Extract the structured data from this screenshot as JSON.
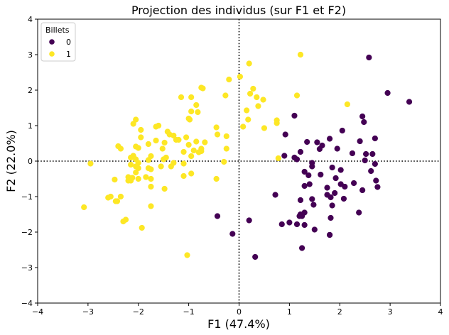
{
  "chart_data": {
    "type": "scatter",
    "title": "Projection des individus (sur F1 et F2)",
    "xlabel": "F1 (47.4%)",
    "ylabel": "F2 (22.0%)",
    "xlim": [
      -4,
      4
    ],
    "ylim": [
      -4,
      4
    ],
    "xticks": [
      -4,
      -3,
      -2,
      -1,
      0,
      1,
      2,
      3,
      4
    ],
    "yticks": [
      -4,
      -3,
      -2,
      -1,
      0,
      1,
      2,
      3,
      4
    ],
    "xtick_labels": [
      "−4",
      "−3",
      "−2",
      "−1",
      "0",
      "1",
      "2",
      "3",
      "4"
    ],
    "ytick_labels": [
      "−4",
      "−3",
      "−2",
      "−1",
      "0",
      "1",
      "2",
      "3",
      "4"
    ],
    "grid": false,
    "reference_lines": {
      "x": 0,
      "y": 0,
      "style": "dotted"
    },
    "legend": {
      "title": "Billets",
      "position": "top-left"
    },
    "series": [
      {
        "name": "0",
        "color": "#440154",
        "points": [
          [
            2.58,
            2.92
          ],
          [
            2.95,
            1.92
          ],
          [
            3.38,
            1.67
          ],
          [
            1.1,
            1.28
          ],
          [
            2.45,
            1.26
          ],
          [
            2.48,
            1.1
          ],
          [
            2.05,
            0.86
          ],
          [
            0.92,
            0.75
          ],
          [
            2.7,
            0.64
          ],
          [
            1.8,
            0.63
          ],
          [
            2.4,
            0.56
          ],
          [
            1.35,
            0.54
          ],
          [
            1.55,
            0.53
          ],
          [
            1.65,
            0.44
          ],
          [
            1.95,
            0.35
          ],
          [
            1.6,
            0.34
          ],
          [
            1.22,
            0.26
          ],
          [
            2.25,
            0.22
          ],
          [
            2.52,
            0.2
          ],
          [
            0.9,
            0.15
          ],
          [
            2.65,
            0.2
          ],
          [
            1.1,
            0.1
          ],
          [
            1.15,
            0.05
          ],
          [
            2.5,
            0.02
          ],
          [
            1.45,
            -0.05
          ],
          [
            2.7,
            -0.08
          ],
          [
            1.45,
            -0.15
          ],
          [
            1.85,
            -0.18
          ],
          [
            2.02,
            -0.25
          ],
          [
            1.3,
            -0.3
          ],
          [
            2.62,
            -0.28
          ],
          [
            1.62,
            -0.38
          ],
          [
            1.38,
            -0.4
          ],
          [
            1.92,
            -0.48
          ],
          [
            2.72,
            -0.55
          ],
          [
            2.28,
            -0.62
          ],
          [
            1.4,
            -0.65
          ],
          [
            2.02,
            -0.65
          ],
          [
            1.3,
            -0.7
          ],
          [
            2.1,
            -0.72
          ],
          [
            1.75,
            -0.75
          ],
          [
            2.75,
            -0.73
          ],
          [
            2.45,
            -0.82
          ],
          [
            1.9,
            -0.9
          ],
          [
            1.75,
            -0.95
          ],
          [
            0.72,
            -0.95
          ],
          [
            1.82,
            -1.02
          ],
          [
            2.08,
            -1.06
          ],
          [
            1.45,
            -1.07
          ],
          [
            1.22,
            -1.1
          ],
          [
            1.48,
            -1.23
          ],
          [
            1.85,
            -1.25
          ],
          [
            1.3,
            -1.45
          ],
          [
            1.22,
            -1.5
          ],
          [
            2.38,
            -1.45
          ],
          [
            1.25,
            -1.55
          ],
          [
            1.2,
            -1.55
          ],
          [
            -0.43,
            -1.55
          ],
          [
            1.82,
            -1.6
          ],
          [
            0.2,
            -1.67
          ],
          [
            1.0,
            -1.73
          ],
          [
            0.85,
            -1.78
          ],
          [
            1.15,
            -1.78
          ],
          [
            1.3,
            -1.8
          ],
          [
            1.5,
            -1.93
          ],
          [
            -0.13,
            -2.05
          ],
          [
            1.8,
            -2.08
          ],
          [
            1.8,
            -2.08
          ],
          [
            1.25,
            -2.45
          ],
          [
            0.32,
            -2.7
          ]
        ]
      },
      {
        "name": "1",
        "color": "#fde725",
        "points": [
          [
            1.22,
            3.0
          ],
          [
            0.2,
            2.75
          ],
          [
            0.02,
            2.38
          ],
          [
            -0.2,
            2.3
          ],
          [
            -0.75,
            2.07
          ],
          [
            -0.72,
            2.05
          ],
          [
            0.28,
            2.04
          ],
          [
            0.22,
            1.9
          ],
          [
            0.35,
            1.8
          ],
          [
            -0.95,
            1.8
          ],
          [
            -1.15,
            1.8
          ],
          [
            -0.27,
            1.85
          ],
          [
            1.15,
            1.85
          ],
          [
            0.48,
            1.73
          ],
          [
            0.38,
            1.55
          ],
          [
            2.15,
            1.6
          ],
          [
            -0.85,
            1.58
          ],
          [
            0.15,
            1.43
          ],
          [
            -0.95,
            1.4
          ],
          [
            -0.82,
            1.38
          ],
          [
            -1.0,
            1.2
          ],
          [
            -0.98,
            1.17
          ],
          [
            0.18,
            1.17
          ],
          [
            -2.05,
            1.17
          ],
          [
            -2.1,
            1.05
          ],
          [
            0.75,
            1.15
          ],
          [
            0.75,
            1.07
          ],
          [
            -1.6,
            1.0
          ],
          [
            -1.65,
            0.97
          ],
          [
            -0.45,
            0.95
          ],
          [
            0.08,
            0.97
          ],
          [
            0.5,
            0.93
          ],
          [
            -1.95,
            0.88
          ],
          [
            -1.42,
            0.83
          ],
          [
            -1.38,
            0.75
          ],
          [
            -1.3,
            0.72
          ],
          [
            -0.43,
            0.75
          ],
          [
            -0.25,
            0.7
          ],
          [
            -1.95,
            0.67
          ],
          [
            -1.25,
            0.6
          ],
          [
            -1.2,
            0.6
          ],
          [
            -1.65,
            0.58
          ],
          [
            -0.85,
            0.55
          ],
          [
            -1.48,
            0.52
          ],
          [
            -0.68,
            0.53
          ],
          [
            -1.05,
            0.67
          ],
          [
            -1.8,
            0.48
          ],
          [
            -1.0,
            0.46
          ],
          [
            -2.4,
            0.42
          ],
          [
            -2.05,
            0.41
          ],
          [
            -2.0,
            0.37
          ],
          [
            -1.52,
            0.35
          ],
          [
            -2.35,
            0.35
          ],
          [
            -0.75,
            0.35
          ],
          [
            -0.9,
            0.3
          ],
          [
            -0.25,
            0.35
          ],
          [
            -0.75,
            0.28
          ],
          [
            -1.1,
            0.26
          ],
          [
            -0.8,
            0.25
          ],
          [
            -2.1,
            0.15
          ],
          [
            -1.75,
            0.14
          ],
          [
            -0.95,
            0.14
          ],
          [
            -1.45,
            0.1
          ],
          [
            -2.15,
            0.1
          ],
          [
            -2.05,
            0.05
          ],
          [
            -1.5,
            0.05
          ],
          [
            -1.8,
            0.03
          ],
          [
            -0.3,
            -0.02
          ],
          [
            0.78,
            0.08
          ],
          [
            -2.0,
            -0.05
          ],
          [
            -2.15,
            -0.1
          ],
          [
            -1.3,
            -0.05
          ],
          [
            -1.1,
            -0.07
          ],
          [
            -2.95,
            -0.07
          ],
          [
            -1.35,
            -0.15
          ],
          [
            -2.05,
            -0.15
          ],
          [
            -1.55,
            -0.15
          ],
          [
            -2.0,
            -0.2
          ],
          [
            -1.8,
            -0.2
          ],
          [
            -1.75,
            -0.23
          ],
          [
            -2.05,
            -0.32
          ],
          [
            -0.95,
            -0.35
          ],
          [
            -1.1,
            -0.42
          ],
          [
            -2.2,
            -0.45
          ],
          [
            -2.12,
            -0.47
          ],
          [
            -1.85,
            -0.45
          ],
          [
            -1.75,
            -0.5
          ],
          [
            -2.0,
            -0.5
          ],
          [
            -2.2,
            -0.55
          ],
          [
            -2.47,
            -0.52
          ],
          [
            -2.15,
            -0.55
          ],
          [
            -0.45,
            -0.5
          ],
          [
            -1.75,
            -0.72
          ],
          [
            -1.48,
            -0.78
          ],
          [
            -2.55,
            -1.0
          ],
          [
            -2.6,
            -1.03
          ],
          [
            -2.35,
            -1.0
          ],
          [
            -2.42,
            -1.13
          ],
          [
            -2.45,
            -1.13
          ],
          [
            -1.75,
            -1.27
          ],
          [
            -3.08,
            -1.3
          ],
          [
            -2.25,
            -1.65
          ],
          [
            -2.3,
            -1.7
          ],
          [
            -1.93,
            -1.88
          ],
          [
            -1.03,
            -2.65
          ]
        ]
      }
    ]
  }
}
